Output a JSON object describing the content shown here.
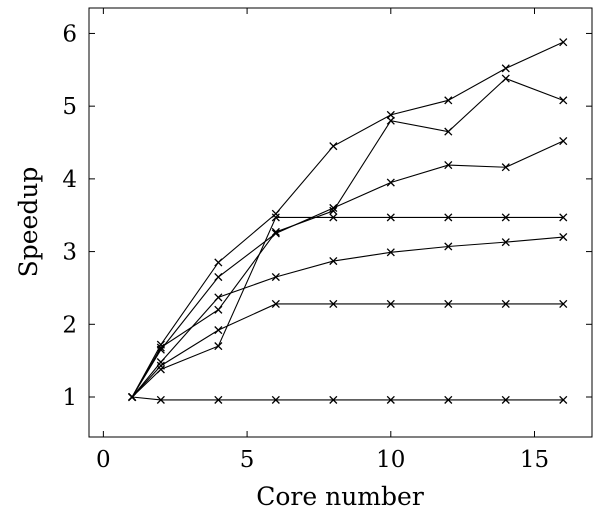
{
  "chart_data": {
    "type": "line",
    "xlabel": "Core number",
    "ylabel": "Speedup",
    "xlim": [
      -0.5,
      17.0
    ],
    "ylim": [
      0.45,
      6.35
    ],
    "xticks": [
      0,
      5,
      10,
      15
    ],
    "yticks": [
      1,
      2,
      3,
      4,
      5,
      6
    ],
    "grid": false,
    "marker": "x",
    "series": [
      {
        "x": [
          1,
          2,
          4,
          6,
          8,
          10,
          12,
          14,
          16
        ],
        "y": [
          1.0,
          1.72,
          2.85,
          3.52,
          4.45,
          4.88,
          5.08,
          5.52,
          5.88
        ]
      },
      {
        "x": [
          1,
          2,
          4,
          6,
          8,
          10,
          12,
          14,
          16
        ],
        "y": [
          1.0,
          1.68,
          2.2,
          3.27,
          3.56,
          4.8,
          4.65,
          5.38,
          5.08
        ]
      },
      {
        "x": [
          1,
          2,
          4,
          6,
          8,
          10,
          12,
          14,
          16
        ],
        "y": [
          1.0,
          1.65,
          2.65,
          3.25,
          3.6,
          3.95,
          4.19,
          4.16,
          4.52
        ]
      },
      {
        "x": [
          1,
          2,
          4,
          6,
          8,
          10,
          12,
          14,
          16
        ],
        "y": [
          1.0,
          1.38,
          1.7,
          3.47,
          3.47,
          3.47,
          3.47,
          3.47,
          3.47
        ]
      },
      {
        "x": [
          1,
          2,
          4,
          6,
          8,
          10,
          12,
          14,
          16
        ],
        "y": [
          1.0,
          1.48,
          2.37,
          2.65,
          2.87,
          2.99,
          3.07,
          3.13,
          3.2
        ]
      },
      {
        "x": [
          1,
          2,
          4,
          6,
          8,
          10,
          12,
          14,
          16
        ],
        "y": [
          1.0,
          1.43,
          1.92,
          2.28,
          2.28,
          2.28,
          2.28,
          2.28,
          2.28
        ]
      },
      {
        "x": [
          1,
          2,
          4,
          6,
          8,
          10,
          12,
          14,
          16
        ],
        "y": [
          1.0,
          0.96,
          0.96,
          0.96,
          0.96,
          0.96,
          0.96,
          0.96,
          0.96
        ]
      }
    ]
  }
}
